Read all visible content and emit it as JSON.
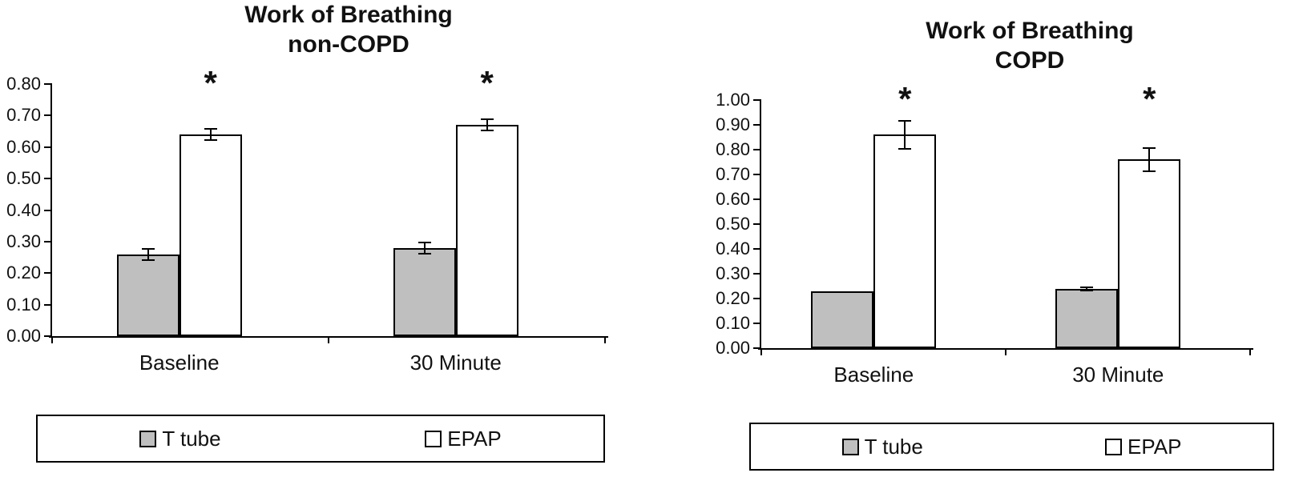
{
  "figure": {
    "background": "#ffffff",
    "axis_color": "#000000"
  },
  "chart_data": [
    {
      "type": "bar",
      "title": "Work of Breathing",
      "subtitle": "non-COPD",
      "categories": [
        "Baseline",
        "30 Minute"
      ],
      "series": [
        {
          "name": "T tube",
          "color": "#bfbfbf",
          "values": [
            0.26,
            0.28
          ],
          "errors": [
            0.02,
            0.02
          ]
        },
        {
          "name": "EPAP",
          "color": "#ffffff",
          "values": [
            0.64,
            0.67
          ],
          "errors": [
            0.02,
            0.02
          ]
        }
      ],
      "significance_marker": "*",
      "significance_on": "EPAP",
      "ylim": [
        0,
        0.8
      ],
      "yticks": [
        "0.00",
        "0.10",
        "0.20",
        "0.30",
        "0.40",
        "0.50",
        "0.60",
        "0.70",
        "0.80"
      ],
      "grid": false,
      "legend_position": "bottom"
    },
    {
      "type": "bar",
      "title": "Work of Breathing",
      "subtitle": "COPD",
      "categories": [
        "Baseline",
        "30 Minute"
      ],
      "series": [
        {
          "name": "T tube",
          "color": "#bfbfbf",
          "values": [
            0.23,
            0.24
          ],
          "errors": [
            0,
            0.01
          ]
        },
        {
          "name": "EPAP",
          "color": "#ffffff",
          "values": [
            0.86,
            0.76
          ],
          "errors": [
            0.06,
            0.05
          ]
        }
      ],
      "significance_marker": "*",
      "significance_on": "EPAP",
      "ylim": [
        0,
        1.0
      ],
      "yticks": [
        "0.00",
        "0.10",
        "0.20",
        "0.30",
        "0.40",
        "0.50",
        "0.60",
        "0.70",
        "0.80",
        "0.90",
        "1.00"
      ],
      "grid": false,
      "legend_position": "bottom"
    }
  ]
}
